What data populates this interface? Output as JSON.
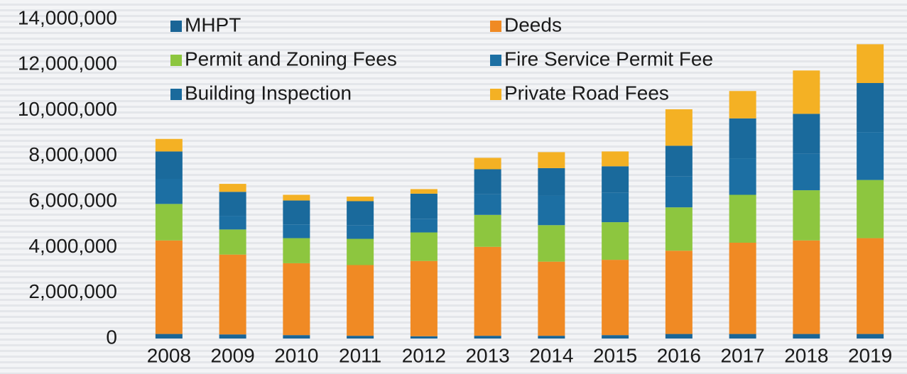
{
  "chart_data": {
    "type": "stacked-bar",
    "categories": [
      "2008",
      "2009",
      "2010",
      "2011",
      "2012",
      "2013",
      "2014",
      "2015",
      "2016",
      "2017",
      "2018",
      "2019"
    ],
    "series": [
      {
        "name": "MHPT",
        "color": "#1a6596",
        "values": [
          200000,
          180000,
          150000,
          120000,
          100000,
          120000,
          120000,
          150000,
          200000,
          200000,
          200000,
          200000
        ]
      },
      {
        "name": "Deeds",
        "color": "#f08a24",
        "values": [
          4100000,
          3500000,
          3150000,
          3100000,
          3300000,
          3900000,
          3250000,
          3300000,
          3650000,
          4000000,
          4100000,
          4200000
        ]
      },
      {
        "name": "Permit and Zoning Fees",
        "color": "#8dc63f",
        "values": [
          1600000,
          1100000,
          1100000,
          1150000,
          1250000,
          1400000,
          1600000,
          1650000,
          1900000,
          2100000,
          2200000,
          2550000
        ]
      },
      {
        "name": "Fire Service Permit Fee",
        "color": "#1c6fa3",
        "values": [
          1100000,
          600000,
          600000,
          600000,
          600000,
          900000,
          1300000,
          1300000,
          1350000,
          1600000,
          1600000,
          2100000
        ]
      },
      {
        "name": "Building Inspection",
        "color": "#1a6a9c",
        "values": [
          1200000,
          1050000,
          1050000,
          1050000,
          1100000,
          1100000,
          1200000,
          1150000,
          1350000,
          1750000,
          1750000,
          2150000
        ]
      },
      {
        "name": "Private Road Fees",
        "color": "#f4b124",
        "values": [
          550000,
          350000,
          250000,
          200000,
          200000,
          500000,
          700000,
          650000,
          1600000,
          1200000,
          1900000,
          1700000
        ]
      }
    ],
    "ylim": [
      0,
      14000000
    ],
    "yticks": [
      0,
      {
        "value": 2000000,
        "label": "2,000,000"
      },
      {
        "value": 4000000,
        "label": "4,000,000"
      },
      {
        "value": 6000000,
        "label": "6,000,000"
      },
      {
        "value": 8000000,
        "label": "8,000,000"
      },
      {
        "value": 10000000,
        "label": "10,000,000"
      },
      {
        "value": 12000000,
        "label": "12,000,000"
      },
      {
        "value": 14000000,
        "label": "14,000,000"
      }
    ],
    "grid": false,
    "legend": "top"
  }
}
